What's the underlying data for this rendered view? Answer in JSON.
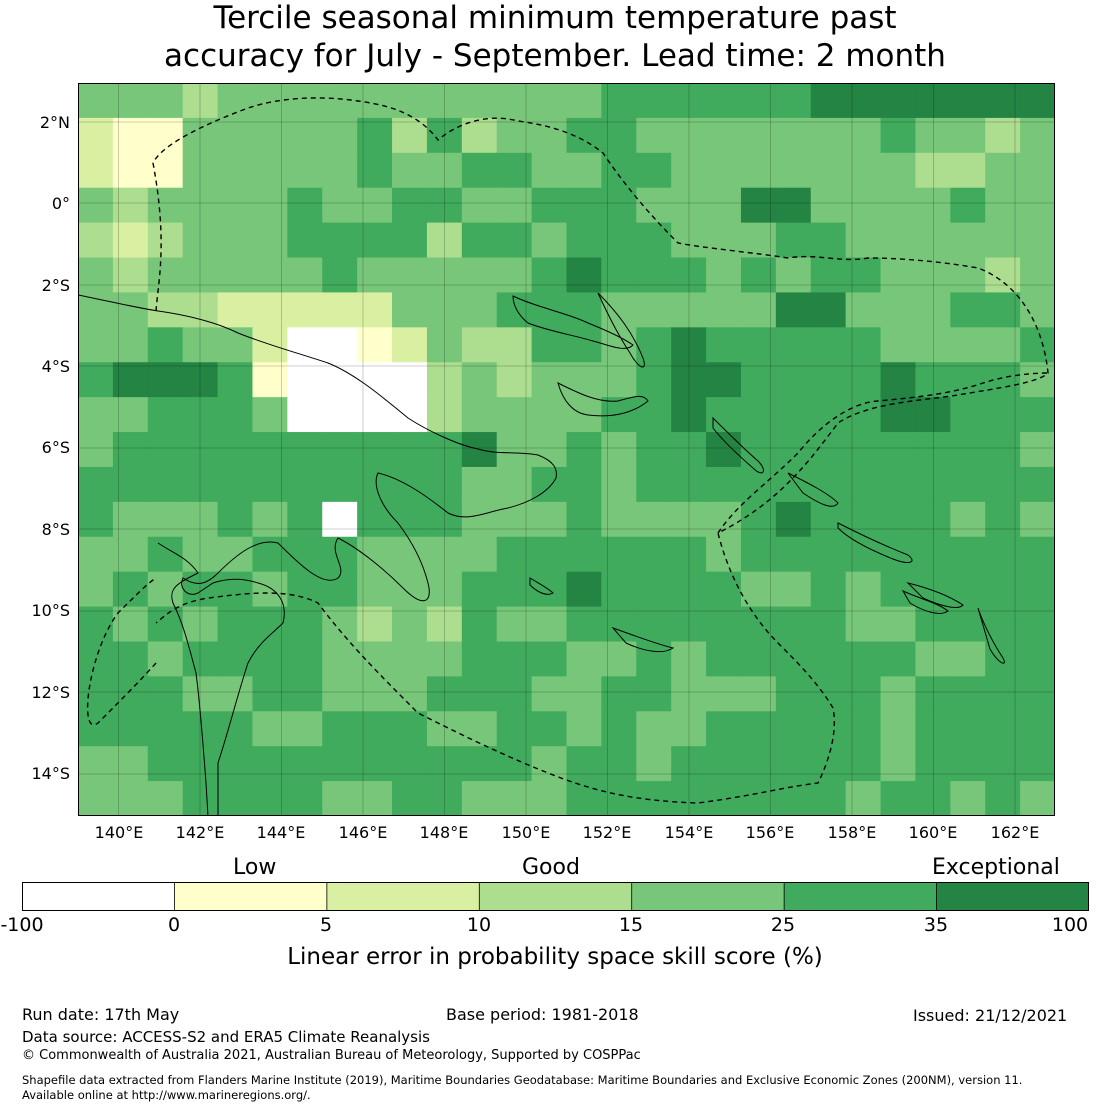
{
  "title": {
    "line1": "Tercile seasonal minimum temperature past",
    "line2": "accuracy for July - September. Lead time: 2 month"
  },
  "map": {
    "lat_labels": [
      "2°N",
      "0°",
      "2°S",
      "4°S",
      "6°S",
      "8°S",
      "10°S",
      "12°S",
      "14°S"
    ],
    "lon_labels": [
      "140°E",
      "142°E",
      "144°E",
      "146°E",
      "148°E",
      "150°E",
      "152°E",
      "154°E",
      "156°E",
      "158°E",
      "160°E",
      "162°E"
    ],
    "cell_colors": {
      "neg": "#ffffff",
      "c0": "#ffffcc",
      "c5": "#d9f0a3",
      "c10": "#addd8e",
      "c15": "#78c679",
      "c25": "#41ab5d",
      "c35": "#238443"
    },
    "coastline_color": "#000000",
    "eez_boundary_style": "dashed"
  },
  "colorbar": {
    "categories": [
      "Low",
      "Good",
      "Exceptional"
    ],
    "ticks": [
      "-100",
      "0",
      "5",
      "10",
      "15",
      "25",
      "35",
      "100"
    ],
    "label": "Linear error in probability space skill score (%)",
    "colors": [
      "#ffffff",
      "#ffffcc",
      "#d9f0a3",
      "#addd8e",
      "#78c679",
      "#41ab5d",
      "#238443"
    ]
  },
  "footer": {
    "run_date": "Run date: 17th May",
    "base_period": "Base period: 1981-2018",
    "issued": "Issued: 21/12/2021",
    "data_source": "Data source: ACCESS-S2 and ERA5 Climate Reanalysis",
    "copyright": "© Commonwealth of Australia 2021, Australian Bureau of Meteorology, Supported by COSPPac",
    "shapefile_line1": "Shapefile data extracted from Flanders Marine Institute (2019), Maritime Boundaries Geodatabase: Maritime Boundaries and Exclusive Economic Zones (200NM), version 11.",
    "shapefile_line2": "Available online at http://www.marineregions.org/."
  }
}
